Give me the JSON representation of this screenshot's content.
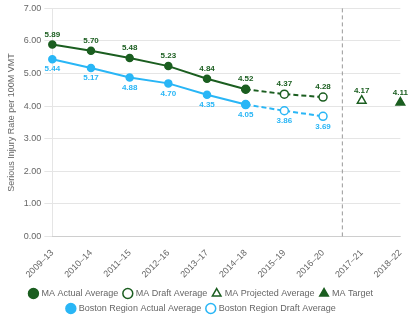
{
  "chart_data": {
    "type": "line",
    "categories": [
      "2009–13",
      "2010–14",
      "2011–15",
      "2012–16",
      "2013–17",
      "2014–18",
      "2015–19",
      "2016–20",
      "2017–21",
      "2018–22"
    ],
    "ylabel": "Serious Injury Rate per 100M VMT",
    "ylim": [
      0.0,
      7.0
    ],
    "yticks": [
      {
        "value": 0.0,
        "label": "0.00"
      },
      {
        "value": 1.0,
        "label": "1.00"
      },
      {
        "value": 2.0,
        "label": "2.00"
      },
      {
        "value": 3.0,
        "label": "3.00"
      },
      {
        "value": 4.0,
        "label": "4.00"
      },
      {
        "value": 5.0,
        "label": "5.00"
      },
      {
        "value": 6.0,
        "label": "6.00"
      },
      {
        "value": 7.0,
        "label": "7.00"
      }
    ],
    "grid": "y",
    "legend": "bottom",
    "data_labels": true,
    "vline_x": 7.5,
    "series": [
      {
        "name": "MA Actual Average",
        "color": "#1b5e20",
        "marker": "circle",
        "line_style": "solid",
        "values": [
          5.89,
          5.7,
          5.48,
          5.23,
          4.84,
          4.52,
          null,
          null,
          null,
          null
        ],
        "value_labels": [
          "5.89",
          "5.70",
          "5.48",
          "5.23",
          "4.84",
          "4.52",
          null,
          null,
          null,
          null
        ]
      },
      {
        "name": "MA Draft Average",
        "color": "#1b5e20",
        "marker": "circle_open",
        "line_style": "dashed",
        "values": [
          null,
          null,
          null,
          null,
          null,
          4.52,
          4.37,
          4.28,
          null,
          null
        ],
        "value_labels": [
          null,
          null,
          null,
          null,
          null,
          null,
          "4.37",
          "4.28",
          null,
          null
        ]
      },
      {
        "name": "MA Projected Average",
        "color": "#1b5e20",
        "marker": "triangle_open",
        "line_style": "none",
        "values": [
          null,
          null,
          null,
          null,
          null,
          null,
          null,
          null,
          4.17,
          null
        ],
        "value_labels": [
          null,
          null,
          null,
          null,
          null,
          null,
          null,
          null,
          "4.17",
          null
        ]
      },
      {
        "name": "MA Target",
        "color": "#1b5e20",
        "marker": "triangle",
        "line_style": "none",
        "values": [
          null,
          null,
          null,
          null,
          null,
          null,
          null,
          null,
          null,
          4.11
        ],
        "value_labels": [
          null,
          null,
          null,
          null,
          null,
          null,
          null,
          null,
          null,
          "4.11"
        ]
      },
      {
        "name": "Boston Region Actual Average",
        "color": "#29b6f6",
        "marker": "circle",
        "line_style": "solid",
        "values": [
          5.44,
          5.17,
          4.88,
          4.7,
          4.35,
          4.05,
          null,
          null,
          null,
          null
        ],
        "value_labels": [
          "5.44",
          "5.17",
          "4.88",
          "4.70",
          "4.35",
          "4.05",
          null,
          null,
          null,
          null
        ]
      },
      {
        "name": "Boston Region Draft Average",
        "color": "#29b6f6",
        "marker": "circle_open",
        "line_style": "dashed",
        "values": [
          null,
          null,
          null,
          null,
          null,
          4.05,
          3.86,
          3.69,
          null,
          null
        ],
        "value_labels": [
          null,
          null,
          null,
          null,
          null,
          null,
          "3.86",
          "3.69",
          null,
          null
        ]
      }
    ]
  }
}
